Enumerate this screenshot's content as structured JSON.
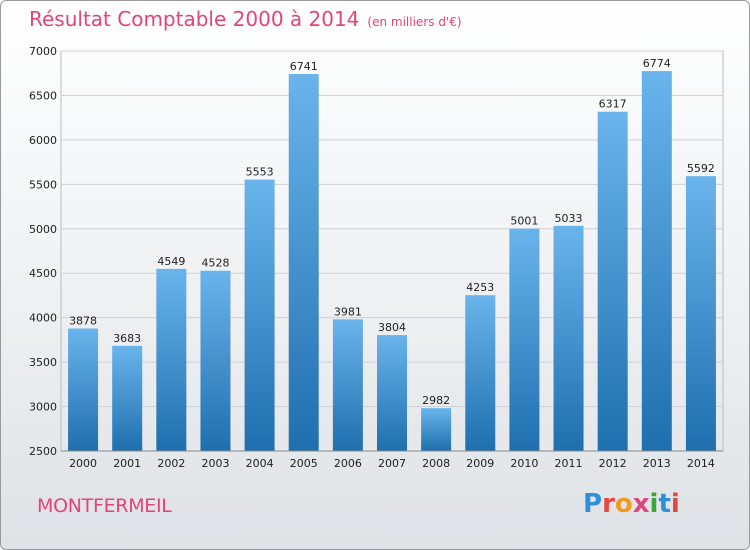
{
  "title": "Résultat Comptable 2000 à 2014",
  "unit": "(en milliers d'€)",
  "place": "MONTFERMEIL",
  "logo": {
    "text": "Proxiti",
    "letter_colors": [
      "#2f8fd8",
      "#e8453c",
      "#f29a1f",
      "#e0457b",
      "#3aa63a",
      "#2f8fd8",
      "#e8453c"
    ]
  },
  "colors": {
    "bar_light": "#6ab4ec",
    "bar_dark": "#1f6fae",
    "title": "#e0457b"
  },
  "chart_data": {
    "type": "bar",
    "categories": [
      "2000",
      "2001",
      "2002",
      "2003",
      "2004",
      "2005",
      "2006",
      "2007",
      "2008",
      "2009",
      "2010",
      "2011",
      "2012",
      "2013",
      "2014"
    ],
    "values": [
      3878,
      3683,
      4549,
      4528,
      5553,
      6741,
      3981,
      3804,
      2982,
      4253,
      5001,
      5033,
      6317,
      6774,
      5592
    ],
    "ylim": [
      2500,
      7000
    ],
    "yticks": [
      2500,
      3000,
      3500,
      4000,
      4500,
      5000,
      5500,
      6000,
      6500,
      7000
    ],
    "grid": true
  }
}
